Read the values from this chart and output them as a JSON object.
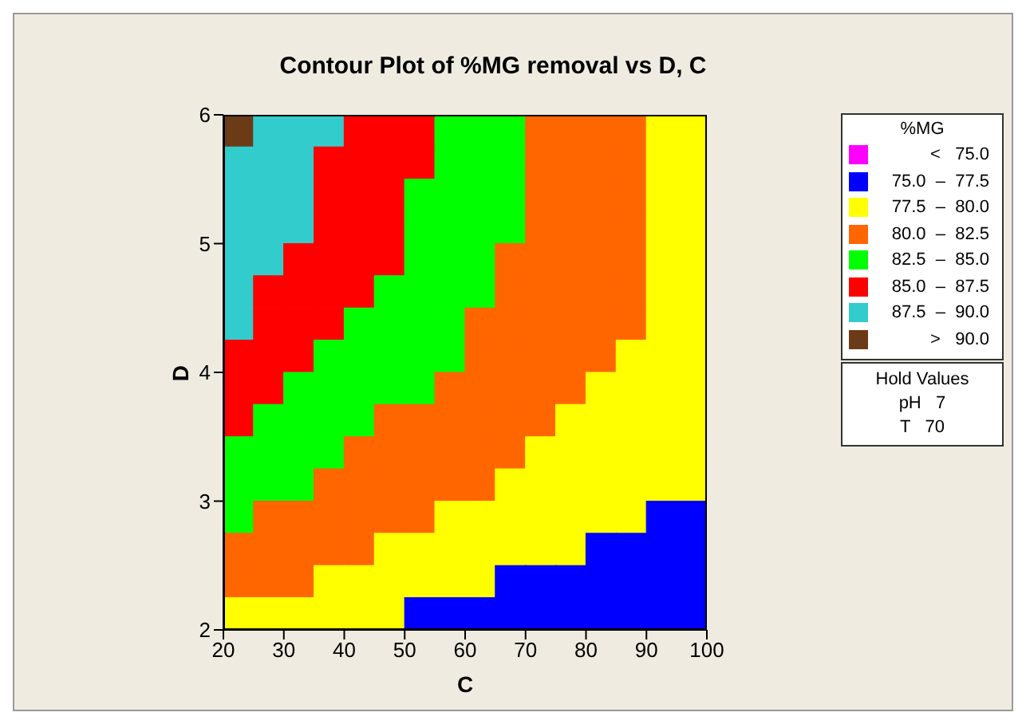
{
  "chart_data": {
    "type": "heatmap",
    "title": "Contour Plot of %MG removal vs D, C",
    "xlabel": "C",
    "ylabel": "D",
    "clabel": "%MG",
    "xlim": [
      20,
      100
    ],
    "xticks": [
      20,
      30,
      40,
      50,
      60,
      70,
      80,
      90,
      100
    ],
    "ylim": [
      2,
      6
    ],
    "yticks": [
      2,
      3,
      4,
      5,
      6
    ],
    "clim": [
      72.5,
      92.5
    ],
    "colors": [
      "#ff00ff",
      "#0000ff",
      "#ffff00",
      "#ff6600",
      "#00ff00",
      "#ff0000",
      "#33cccc",
      "#6b3a17"
    ],
    "cticks": [
      {
        "value": 73.75,
        "label": "<   75.0"
      },
      {
        "value": 76.25,
        "label": "75.0  –  77.5"
      },
      {
        "value": 78.75,
        "label": "77.5  –  80.0"
      },
      {
        "value": 81.25,
        "label": "80.0  –  82.5"
      },
      {
        "value": 83.75,
        "label": "82.5  –  85.0"
      },
      {
        "value": 86.25,
        "label": "85.0  –  87.5"
      },
      {
        "value": 88.75,
        "label": "87.5  –  90.0"
      },
      {
        "value": 91.25,
        "label": ">   90.0"
      }
    ],
    "annotations": [
      "Hold Values",
      "pH   7",
      "T   70"
    ],
    "cells": [
      [
        91.25,
        88.75,
        88.75,
        88.75,
        86.25,
        86.25,
        86.25,
        83.75,
        83.75,
        83.75,
        81.25,
        81.25,
        81.25,
        81.25,
        78.75,
        78.75
      ],
      [
        88.75,
        88.75,
        88.75,
        86.25,
        86.25,
        86.25,
        86.25,
        83.75,
        83.75,
        83.75,
        81.25,
        81.25,
        81.25,
        81.25,
        78.75,
        78.75
      ],
      [
        88.75,
        88.75,
        88.75,
        86.25,
        86.25,
        86.25,
        83.75,
        83.75,
        83.75,
        83.75,
        81.25,
        81.25,
        81.25,
        81.25,
        78.75,
        78.75
      ],
      [
        88.75,
        88.75,
        88.75,
        86.25,
        86.25,
        86.25,
        83.75,
        83.75,
        83.75,
        83.75,
        81.25,
        81.25,
        81.25,
        81.25,
        78.75,
        78.75
      ],
      [
        88.75,
        88.75,
        86.25,
        86.25,
        86.25,
        86.25,
        83.75,
        83.75,
        83.75,
        81.25,
        81.25,
        81.25,
        81.25,
        81.25,
        78.75,
        78.75
      ],
      [
        88.75,
        86.25,
        86.25,
        86.25,
        86.25,
        83.75,
        83.75,
        83.75,
        83.75,
        81.25,
        81.25,
        81.25,
        81.25,
        81.25,
        78.75,
        78.75
      ],
      [
        88.75,
        86.25,
        86.25,
        86.25,
        83.75,
        83.75,
        83.75,
        83.75,
        81.25,
        81.25,
        81.25,
        81.25,
        81.25,
        81.25,
        78.75,
        78.75
      ],
      [
        86.25,
        86.25,
        86.25,
        83.75,
        83.75,
        83.75,
        83.75,
        83.75,
        81.25,
        81.25,
        81.25,
        81.25,
        81.25,
        78.75,
        78.75,
        78.75
      ],
      [
        86.25,
        86.25,
        83.75,
        83.75,
        83.75,
        83.75,
        83.75,
        81.25,
        81.25,
        81.25,
        81.25,
        81.25,
        78.75,
        78.75,
        78.75,
        78.75
      ],
      [
        86.25,
        83.75,
        83.75,
        83.75,
        83.75,
        81.25,
        81.25,
        81.25,
        81.25,
        81.25,
        81.25,
        78.75,
        78.75,
        78.75,
        78.75,
        78.75
      ],
      [
        83.75,
        83.75,
        83.75,
        83.75,
        81.25,
        81.25,
        81.25,
        81.25,
        81.25,
        81.25,
        78.75,
        78.75,
        78.75,
        78.75,
        78.75,
        78.75
      ],
      [
        83.75,
        83.75,
        83.75,
        81.25,
        81.25,
        81.25,
        81.25,
        81.25,
        81.25,
        78.75,
        78.75,
        78.75,
        78.75,
        78.75,
        78.75,
        78.75
      ],
      [
        83.75,
        81.25,
        81.25,
        81.25,
        81.25,
        81.25,
        81.25,
        78.75,
        78.75,
        78.75,
        78.75,
        78.75,
        78.75,
        78.75,
        76.25,
        76.25
      ],
      [
        81.25,
        81.25,
        81.25,
        81.25,
        81.25,
        78.75,
        78.75,
        78.75,
        78.75,
        78.75,
        78.75,
        78.75,
        76.25,
        76.25,
        76.25,
        76.25
      ],
      [
        81.25,
        81.25,
        81.25,
        78.75,
        78.75,
        78.75,
        78.75,
        78.75,
        78.75,
        76.25,
        76.25,
        76.25,
        76.25,
        76.25,
        76.25,
        76.25
      ],
      [
        78.75,
        78.75,
        78.75,
        78.75,
        78.75,
        78.75,
        76.25,
        76.25,
        76.25,
        76.25,
        76.25,
        76.25,
        76.25,
        76.25,
        76.25,
        76.25
      ]
    ]
  }
}
